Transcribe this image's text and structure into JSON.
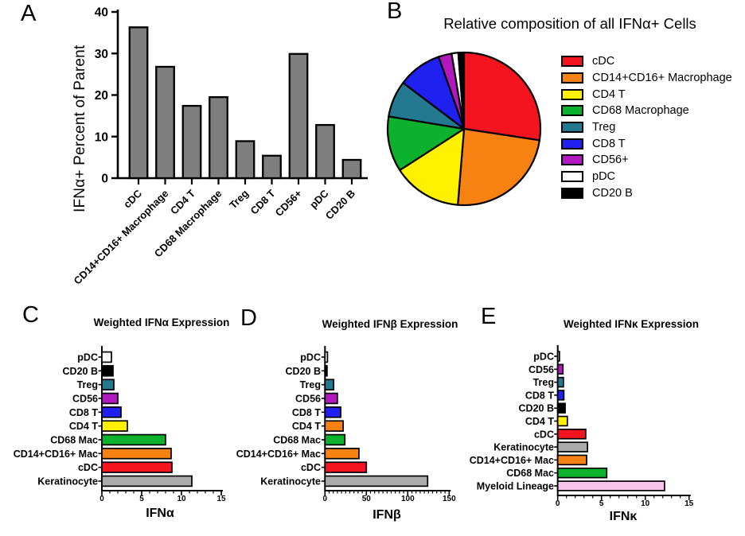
{
  "colors": {
    "red": "#F3141F",
    "orange": "#F78211",
    "yellow": "#FFF100",
    "green": "#0CB22D",
    "teal": "#23798F",
    "blue": "#2020F0",
    "purple": "#B119BE",
    "white": "#FFFFFF",
    "black": "#000000",
    "gray_dark": "#7E7E7E",
    "gray_light": "#ABABAB",
    "pink": "#F8C3EC"
  },
  "chart_data": [
    {
      "panel_label": "A",
      "type": "bar",
      "title": "",
      "ylabel": "IFNα+ Percent of Parent",
      "categories": [
        "cDC",
        "CD14+CD16+ Macrophage",
        "CD4 T",
        "CD68 Macrophage",
        "Treg",
        "CD8 T",
        "CD56+",
        "pDC",
        "CD20 B"
      ],
      "values": [
        36.3,
        26.8,
        17.4,
        19.5,
        8.9,
        5.4,
        29.9,
        12.8,
        4.4
      ],
      "ylim": [
        0,
        40
      ],
      "yticks": [
        0,
        10,
        20,
        30,
        40
      ],
      "bar_color_key": "gray_dark",
      "grid": false
    },
    {
      "panel_label": "B",
      "type": "pie",
      "title": "Relative composition of all IFNα+ Cells",
      "labels": [
        "cDC",
        "CD14+CD16+ Macrophage",
        "CD4 T",
        "CD68 Macrophage",
        "Treg",
        "CD8 T",
        "CD56+",
        "pDC",
        "CD20 B"
      ],
      "values": [
        27.4,
        23.9,
        14.6,
        11.7,
        7.7,
        9.3,
        2.8,
        1.4,
        1.2
      ],
      "color_keys": [
        "red",
        "orange",
        "yellow",
        "green",
        "teal",
        "blue",
        "purple",
        "white",
        "black"
      ],
      "legend_position": "right"
    },
    {
      "panel_label": "C",
      "type": "hbar",
      "title": "Weighted IFNα Expression",
      "xlabel": "IFNα",
      "categories": [
        "pDC",
        "CD20 B",
        "Treg",
        "CD56",
        "CD8 T",
        "CD4 T",
        "CD68 Mac",
        "CD14+CD16+ Mac",
        "cDC",
        "Keratinocyte"
      ],
      "values": [
        1.2,
        1.4,
        1.5,
        2.0,
        2.4,
        3.2,
        8.0,
        8.7,
        8.8,
        11.3
      ],
      "color_keys": [
        "white",
        "black",
        "teal",
        "purple",
        "blue",
        "yellow",
        "green",
        "orange",
        "red",
        "gray_light"
      ],
      "xlim": [
        0,
        15
      ],
      "xticks": [
        0,
        5,
        10,
        15
      ],
      "minor_step": 1,
      "grid": false
    },
    {
      "panel_label": "D",
      "type": "hbar",
      "title": "Weighted IFNβ Expression",
      "xlabel": "IFNβ",
      "categories": [
        "pDC",
        "CD20 B",
        "Treg",
        "CD56",
        "CD8 T",
        "CD4 T",
        "CD68 Mac",
        "CD14+CD16+ Mac",
        "cDC",
        "Keratinocyte"
      ],
      "values": [
        3.0,
        2.5,
        10.5,
        15.0,
        19.0,
        22.0,
        24.0,
        41.0,
        50.0,
        124.0
      ],
      "color_keys": [
        "white",
        "black",
        "teal",
        "purple",
        "blue",
        "orange",
        "green",
        "orange",
        "red",
        "gray_light"
      ],
      "xlim": [
        0,
        150
      ],
      "xticks": [
        0,
        50,
        100,
        150
      ],
      "minor_step": 5,
      "grid": false
    },
    {
      "panel_label": "E",
      "type": "hbar",
      "title": "Weighted IFNκ Expression",
      "xlabel": "IFNκ",
      "categories": [
        "pDC",
        "CD56",
        "Treg",
        "CD8 T",
        "CD20 B",
        "CD4 T",
        "cDC",
        "Keratinocyte",
        "CD14+CD16+ Mac",
        "CD68 Mac",
        "Myeloid Lineage"
      ],
      "values": [
        0.2,
        0.6,
        0.65,
        0.7,
        0.85,
        1.1,
        3.2,
        3.4,
        3.3,
        5.6,
        12.2
      ],
      "color_keys": [
        "white",
        "purple",
        "teal",
        "blue",
        "black",
        "yellow",
        "red",
        "gray_light",
        "orange",
        "green",
        "pink"
      ],
      "xlim": [
        0,
        15
      ],
      "xticks": [
        0,
        5,
        10,
        15
      ],
      "minor_step": 1,
      "grid": false
    }
  ]
}
